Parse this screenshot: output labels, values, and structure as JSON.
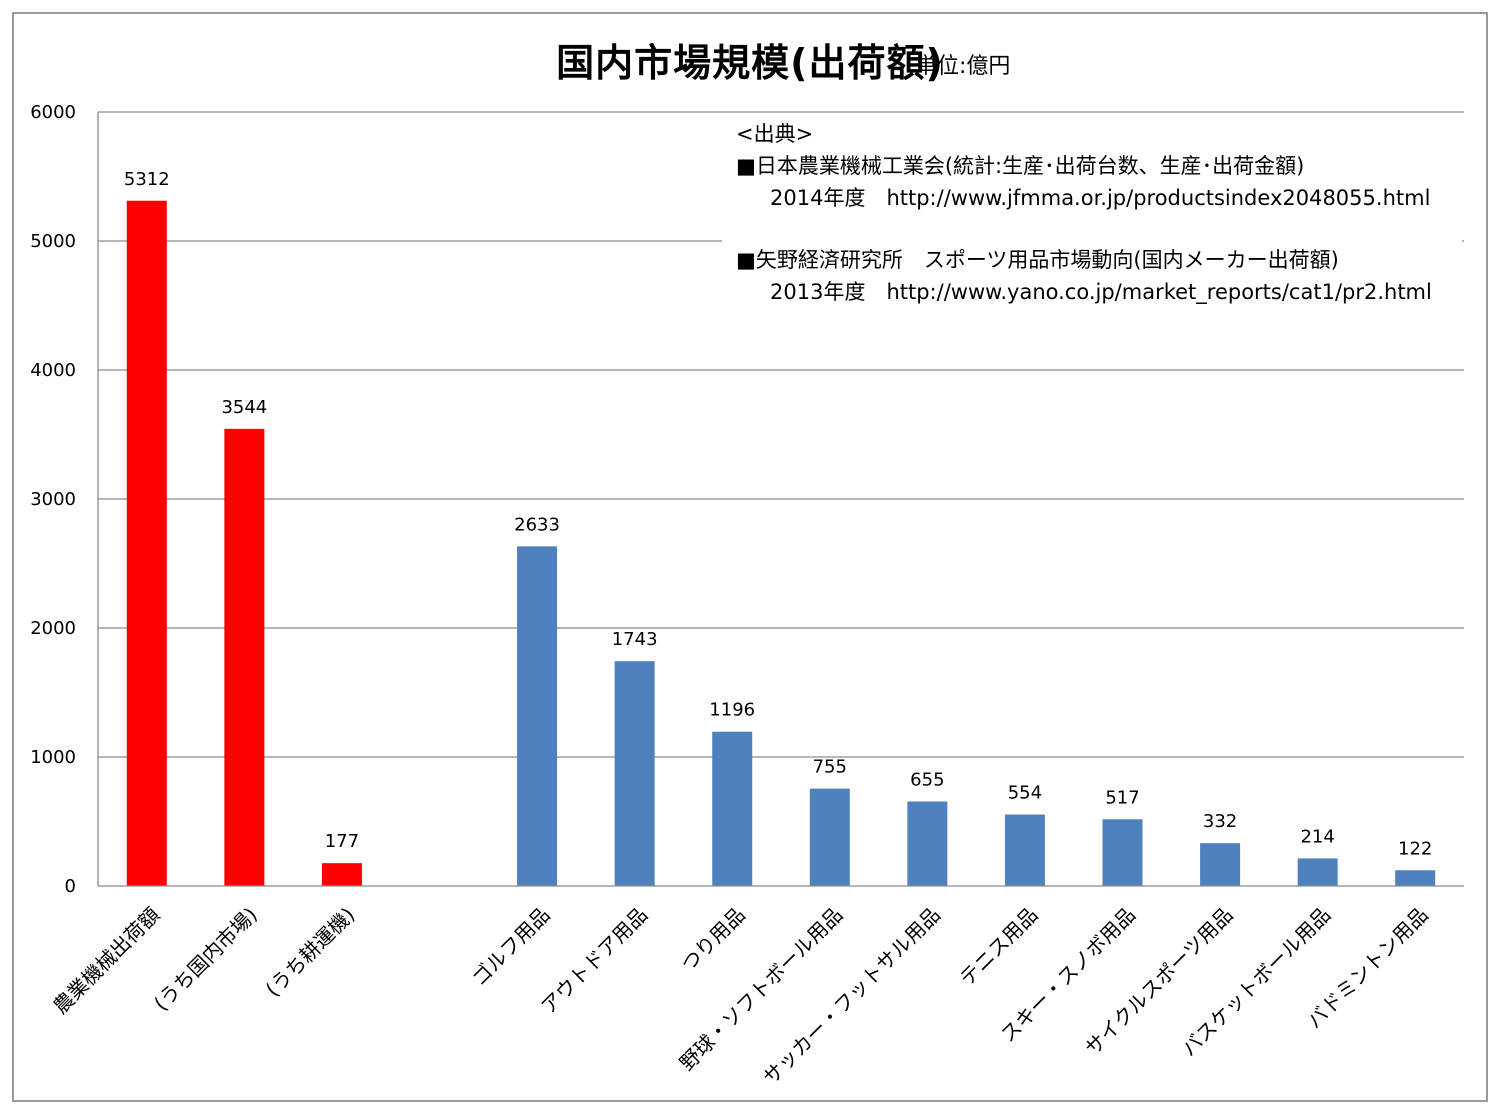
{
  "title": "国内市場規模(出荷額)",
  "unit": "単位:億円",
  "source": {
    "header": "<出典>",
    "items": [
      {
        "name": "■日本農業機械工業会(統計:生産･出荷台数、生産･出荷金額)",
        "detail": "2014年度　http://www.jfmma.or.jp/productsindex2048055.html"
      },
      {
        "name": "■矢野経済研究所　スポーツ用品市場動向(国内メーカー出荷額)",
        "detail": "2013年度　http://www.yano.co.jp/market_reports/cat1/pr2.html"
      }
    ]
  },
  "chart_data": {
    "type": "bar",
    "title": "国内市場規模(出荷額)",
    "ylabel": "",
    "xlabel": "",
    "ylim": [
      0,
      6000
    ],
    "yticks": [
      0,
      1000,
      2000,
      3000,
      4000,
      5000,
      6000
    ],
    "grid": true,
    "categories": [
      "農業機械出荷額",
      "(うち国内市場)",
      "(うち耕運機)",
      "",
      "ゴルフ用品",
      "アウトドア用品",
      "つり用品",
      "野球・ソフトボール用品",
      "サッカー・フットサル用品",
      "テニス用品",
      "スキー・スノボ用品",
      "サイクルスポーツ用品",
      "バスケットボール用品",
      "バドミントン用品"
    ],
    "values": [
      5312,
      3544,
      177,
      null,
      2633,
      1743,
      1196,
      755,
      655,
      554,
      517,
      332,
      214,
      122
    ],
    "value_labels": [
      "5312",
      "3544",
      "177",
      "",
      "2633",
      "1743",
      "1196",
      "755",
      "655",
      "554",
      "517",
      "332",
      "214",
      "122"
    ],
    "colors": [
      "#ff0000",
      "#ff0000",
      "#ff0000",
      "",
      "#4f81bd",
      "#4f81bd",
      "#4f81bd",
      "#4f81bd",
      "#4f81bd",
      "#4f81bd",
      "#4f81bd",
      "#4f81bd",
      "#4f81bd",
      "#4f81bd"
    ]
  }
}
